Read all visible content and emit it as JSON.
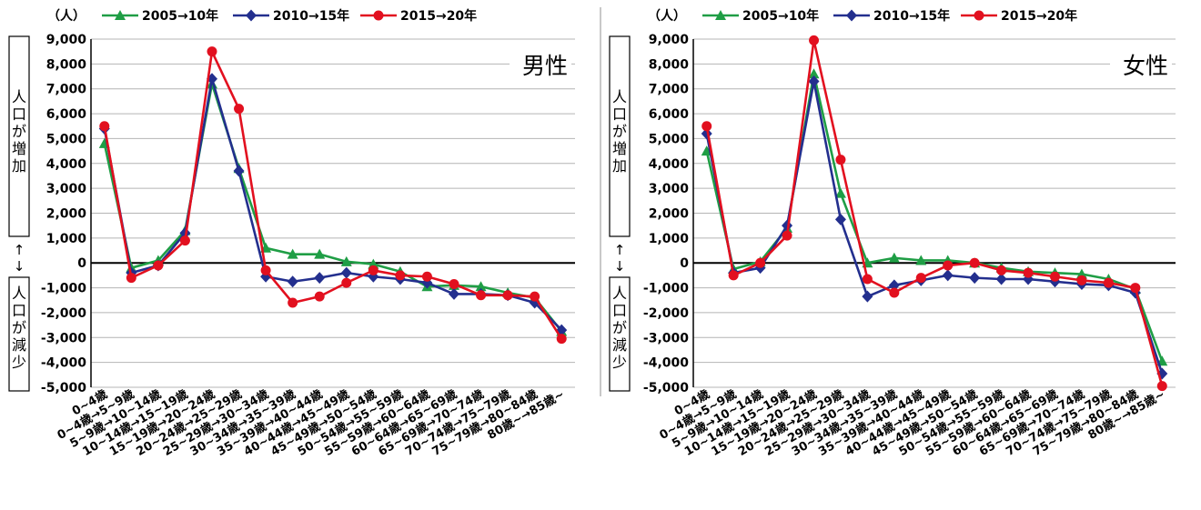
{
  "colors": {
    "s2005": "#1f9e45",
    "s2010": "#232f8e",
    "s2015": "#e2101f",
    "grid": "#b4b4b4",
    "axis": "#000000"
  },
  "charts": [
    {
      "panel_label": "男性",
      "y_unit": "（人）",
      "box_increase": "人口が増加",
      "box_decrease": "人口が減少",
      "arrow_up": "↑",
      "arrow_down": "↓"
    },
    {
      "panel_label": "女性",
      "y_unit": "（人）",
      "box_increase": "人口が増加",
      "box_decrease": "人口が減少",
      "arrow_up": "↑",
      "arrow_down": "↓"
    }
  ],
  "chart_data": [
    {
      "type": "line",
      "title": "",
      "xlabel": "",
      "ylabel": "人口が増加 ↑↓ 人口が減少",
      "ylim": [
        -5000,
        9000
      ],
      "yticks": [
        "9,000",
        "8,000",
        "7,000",
        "6,000",
        "5,000",
        "4,000",
        "3,000",
        "2,000",
        "1,000",
        "0",
        "-1,000",
        "-2,000",
        "-3,000",
        "-4,000",
        "-5,000"
      ],
      "categories": [
        "0~4歳",
        "0~4歳→5~9歳",
        "5~9歳→10~14歳",
        "10~14歳→15~19歳",
        "15~19歳→20~24歳",
        "20~24歳→25~29歳",
        "25~29歳→30~34歳",
        "30~34歳→35~39歳",
        "35~39歳→40~44歳",
        "40~44歳→45~49歳",
        "45~49歳→50~54歳",
        "50~54歳→55~59歳",
        "55~59歳→60~64歳",
        "60~64歳→65~69歳",
        "65~69歳→70~74歳",
        "70~74歳→75~79歳",
        "75~79歳→80~84歳",
        "80歳~→85歳~"
      ],
      "legend_position": "top",
      "series": [
        {
          "name": "2005→10年",
          "marker": "triangle",
          "values": [
            4800,
            -200,
            100,
            1300,
            7200,
            3800,
            600,
            350,
            350,
            50,
            -50,
            -350,
            -950,
            -900,
            -950,
            -1200,
            -1400,
            -2750
          ]
        },
        {
          "name": "2010→15年",
          "marker": "diamond",
          "values": [
            5400,
            -400,
            -100,
            1200,
            7400,
            3700,
            -550,
            -750,
            -600,
            -400,
            -550,
            -650,
            -800,
            -1250,
            -1250,
            -1300,
            -1600,
            -2700
          ]
        },
        {
          "name": "2015→20年",
          "marker": "circle",
          "values": [
            5500,
            -600,
            -100,
            900,
            8500,
            6200,
            -300,
            -1600,
            -1350,
            -800,
            -300,
            -500,
            -550,
            -850,
            -1300,
            -1300,
            -1350,
            -3050
          ]
        }
      ]
    },
    {
      "type": "line",
      "title": "",
      "xlabel": "",
      "ylabel": "人口が増加 ↑↓ 人口が減少",
      "ylim": [
        -5000,
        9000
      ],
      "yticks": [
        "9,000",
        "8,000",
        "7,000",
        "6,000",
        "5,000",
        "4,000",
        "3,000",
        "2,000",
        "1,000",
        "0",
        "-1,000",
        "-2,000",
        "-3,000",
        "-4,000",
        "-5,000"
      ],
      "categories": [
        "0~4歳",
        "0~4歳→5~9歳",
        "5~9歳→10~14歳",
        "10~14歳→15~19歳",
        "15~19歳→20~24歳",
        "20~24歳→25~29歳",
        "25~29歳→30~34歳",
        "30~34歳→35~39歳",
        "35~39歳→40~44歳",
        "40~44歳→45~49歳",
        "45~49歳→50~54歳",
        "50~54歳→55~59歳",
        "55~59歳→60~64歳",
        "60~64歳→65~69歳",
        "65~69歳→70~74歳",
        "70~74歳→75~79歳",
        "75~79歳→80~84歳",
        "80歳~→85歳~"
      ],
      "legend_position": "top",
      "series": [
        {
          "name": "2005→10年",
          "marker": "triangle",
          "values": [
            4500,
            -250,
            50,
            1400,
            7600,
            2800,
            0,
            200,
            100,
            100,
            0,
            -200,
            -350,
            -400,
            -450,
            -650,
            -1050,
            -3950
          ]
        },
        {
          "name": "2010→15年",
          "marker": "diamond",
          "values": [
            5200,
            -400,
            -200,
            1500,
            7300,
            1750,
            -1350,
            -900,
            -700,
            -500,
            -600,
            -650,
            -650,
            -750,
            -850,
            -900,
            -1200,
            -4450
          ]
        },
        {
          "name": "2015→20年",
          "marker": "circle",
          "values": [
            5500,
            -500,
            0,
            1100,
            8950,
            4150,
            -650,
            -1200,
            -600,
            -100,
            0,
            -300,
            -400,
            -550,
            -700,
            -800,
            -1000,
            -4950
          ]
        }
      ]
    }
  ]
}
